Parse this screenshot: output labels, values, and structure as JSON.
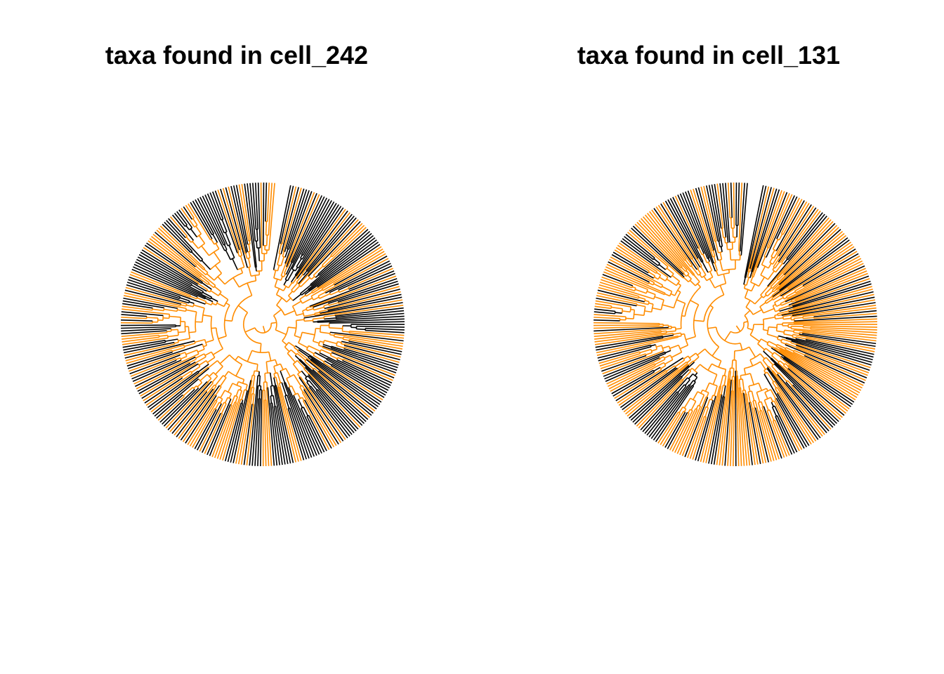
{
  "panels": [
    {
      "title": "taxa found in cell_242",
      "tip_count": 320,
      "highlight_fraction": 0.35,
      "seed": 242
    },
    {
      "title": "taxa found in cell_131",
      "tip_count": 320,
      "highlight_fraction": 0.6,
      "seed": 131
    }
  ],
  "colors": {
    "found_branch": "#FF8C00",
    "other_branch": "#000000",
    "background": "#FFFFFF"
  }
}
